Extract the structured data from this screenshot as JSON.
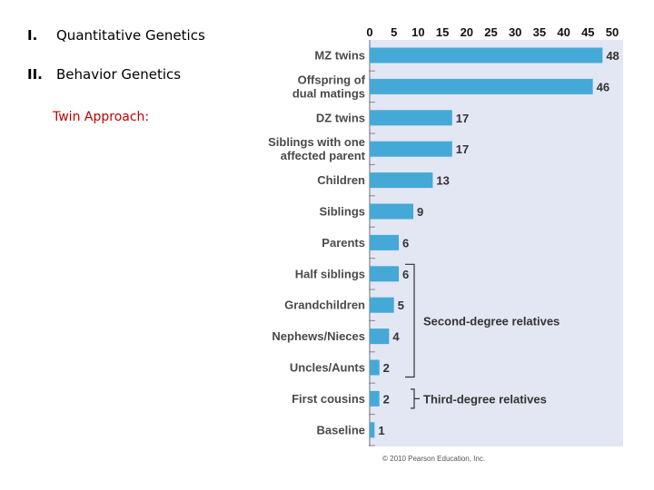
{
  "outline": [
    {
      "num": "I.",
      "text": "Quantitative Genetics"
    },
    {
      "num": "II.",
      "text": "Behavior Genetics"
    }
  ],
  "subheading": "Twin Approach:",
  "copyright": "© 2010 Pearson Education, Inc.",
  "colors": {
    "bar": "#44a9d6",
    "panel": "#e3e7f4",
    "sub": "#c00000"
  },
  "chart_data": {
    "type": "bar",
    "orientation": "horizontal",
    "categories": [
      [
        "MZ twins"
      ],
      [
        "Offspring of",
        "dual matings"
      ],
      [
        "DZ twins"
      ],
      [
        "Siblings with one",
        "affected parent"
      ],
      [
        "Children"
      ],
      [
        "Siblings"
      ],
      [
        "Parents"
      ],
      [
        "Half siblings"
      ],
      [
        "Grandchildren"
      ],
      [
        "Nephews/Nieces"
      ],
      [
        "Uncles/Aunts"
      ],
      [
        "First cousins"
      ],
      [
        "Baseline"
      ]
    ],
    "values": [
      48,
      46,
      17,
      17,
      13,
      9,
      6,
      6,
      5,
      4,
      2,
      2,
      1
    ],
    "xlim": [
      0,
      50
    ],
    "ticks": [
      0,
      5,
      10,
      15,
      20,
      25,
      30,
      35,
      40,
      45,
      50
    ],
    "annotations": [
      {
        "label": "Second-degree relatives",
        "from": 7,
        "to": 10
      },
      {
        "label": "Third-degree relatives",
        "from": 11,
        "to": 11
      }
    ]
  }
}
